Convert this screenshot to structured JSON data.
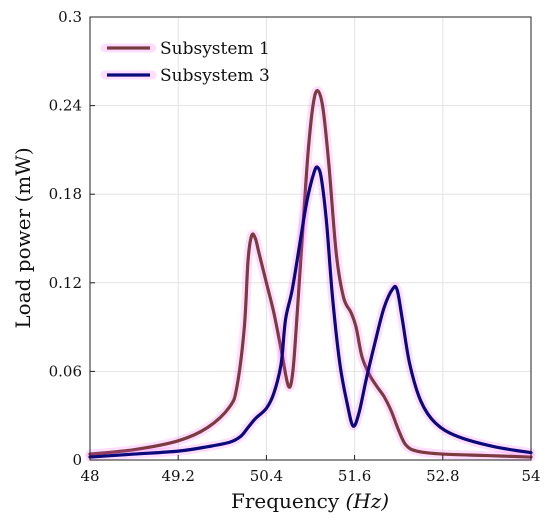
{
  "chart_data": {
    "type": "line",
    "xlabel": "Frequency ",
    "xlabel_unit": "(Hz)",
    "ylabel": "Load power (mW)",
    "xlim": [
      48,
      54
    ],
    "ylim": [
      0,
      0.3
    ],
    "x_ticks": [
      "48",
      "49.2",
      "50.4",
      "51.6",
      "52.8",
      "54"
    ],
    "y_ticks": [
      "0",
      "0.06",
      "0.12",
      "0.18",
      "0.24",
      "0.3"
    ],
    "grid": true,
    "legend_position": "top-left",
    "series": [
      {
        "name": "Subsystem 1",
        "color": "#7B3B3F",
        "glow": "#FF44FF",
        "points": [
          [
            48.0,
            0.004
          ],
          [
            48.6,
            0.007
          ],
          [
            49.2,
            0.013
          ],
          [
            49.6,
            0.022
          ],
          [
            49.9,
            0.036
          ],
          [
            50.0,
            0.05
          ],
          [
            50.1,
            0.09
          ],
          [
            50.15,
            0.135
          ],
          [
            50.2,
            0.152
          ],
          [
            50.25,
            0.15
          ],
          [
            50.3,
            0.14
          ],
          [
            50.4,
            0.12
          ],
          [
            50.5,
            0.1
          ],
          [
            50.6,
            0.075
          ],
          [
            50.7,
            0.05
          ],
          [
            50.76,
            0.06
          ],
          [
            50.82,
            0.1
          ],
          [
            50.9,
            0.16
          ],
          [
            50.97,
            0.21
          ],
          [
            51.04,
            0.242
          ],
          [
            51.1,
            0.25
          ],
          [
            51.17,
            0.238
          ],
          [
            51.25,
            0.2
          ],
          [
            51.35,
            0.14
          ],
          [
            51.45,
            0.11
          ],
          [
            51.55,
            0.1
          ],
          [
            51.62,
            0.09
          ],
          [
            51.7,
            0.07
          ],
          [
            51.8,
            0.058
          ],
          [
            51.9,
            0.05
          ],
          [
            52.0,
            0.043
          ],
          [
            52.1,
            0.033
          ],
          [
            52.2,
            0.02
          ],
          [
            52.3,
            0.01
          ],
          [
            52.45,
            0.006
          ],
          [
            52.8,
            0.004
          ],
          [
            53.4,
            0.003
          ],
          [
            54.0,
            0.002
          ]
        ]
      },
      {
        "name": "Subsystem 3",
        "color": "#0A0A7A",
        "glow": "#FF44FF",
        "points": [
          [
            48.0,
            0.002
          ],
          [
            48.6,
            0.004
          ],
          [
            49.2,
            0.006
          ],
          [
            49.6,
            0.009
          ],
          [
            49.9,
            0.012
          ],
          [
            50.05,
            0.016
          ],
          [
            50.15,
            0.022
          ],
          [
            50.25,
            0.028
          ],
          [
            50.4,
            0.035
          ],
          [
            50.5,
            0.045
          ],
          [
            50.6,
            0.065
          ],
          [
            50.66,
            0.095
          ],
          [
            50.75,
            0.115
          ],
          [
            50.85,
            0.145
          ],
          [
            50.95,
            0.175
          ],
          [
            51.05,
            0.195
          ],
          [
            51.1,
            0.198
          ],
          [
            51.15,
            0.19
          ],
          [
            51.22,
            0.16
          ],
          [
            51.3,
            0.11
          ],
          [
            51.4,
            0.065
          ],
          [
            51.5,
            0.038
          ],
          [
            51.58,
            0.023
          ],
          [
            51.66,
            0.032
          ],
          [
            51.76,
            0.055
          ],
          [
            51.88,
            0.08
          ],
          [
            52.0,
            0.103
          ],
          [
            52.12,
            0.116
          ],
          [
            52.18,
            0.115
          ],
          [
            52.25,
            0.095
          ],
          [
            52.35,
            0.065
          ],
          [
            52.5,
            0.04
          ],
          [
            52.7,
            0.025
          ],
          [
            53.0,
            0.016
          ],
          [
            53.5,
            0.009
          ],
          [
            54.0,
            0.005
          ]
        ]
      }
    ]
  }
}
